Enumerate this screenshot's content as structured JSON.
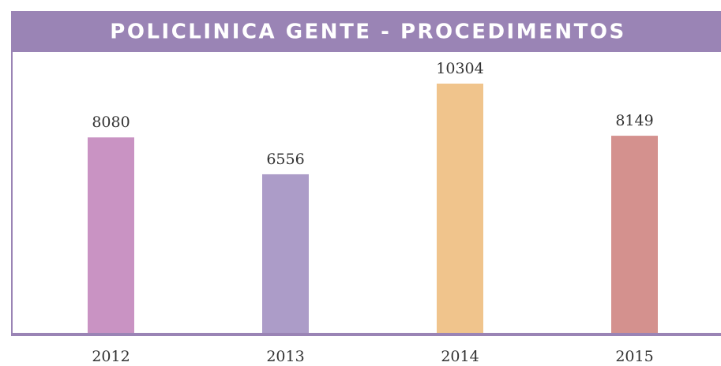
{
  "chart_data": {
    "type": "bar",
    "title": "POLICLINICA GENTE - PROCEDIMENTOS",
    "categories": [
      "2012",
      "2013",
      "2014",
      "2015"
    ],
    "values": [
      8080,
      6556,
      10304,
      8149
    ],
    "colors": [
      "#c993c3",
      "#ac9cc8",
      "#f0c48c",
      "#d4918e"
    ]
  }
}
